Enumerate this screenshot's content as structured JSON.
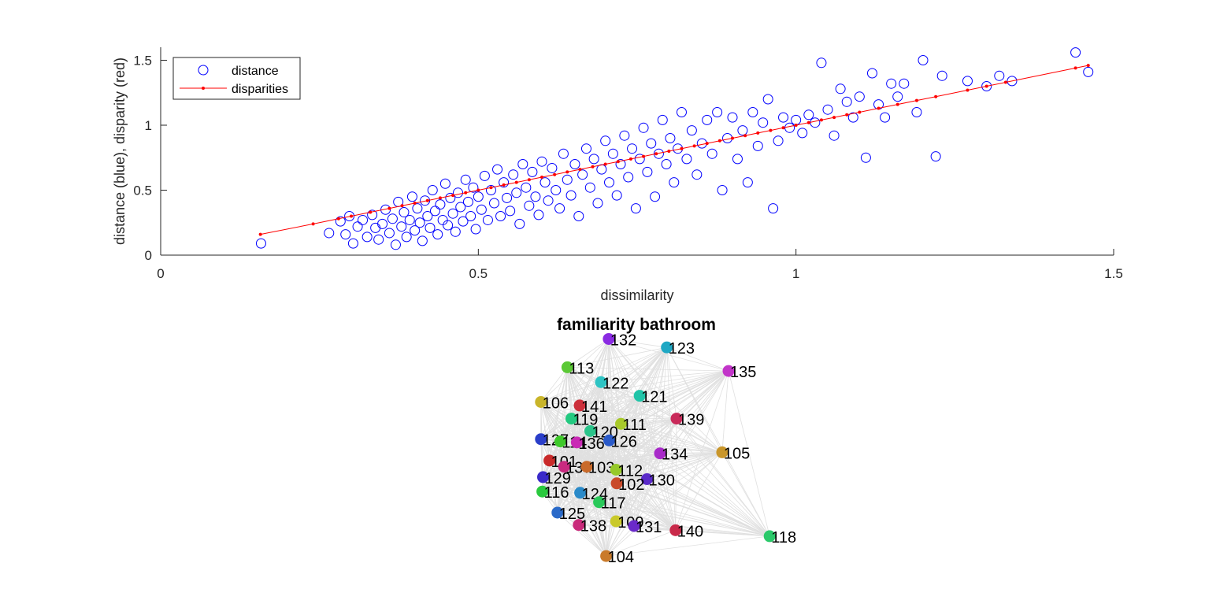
{
  "chart_data": [
    {
      "type": "scatter",
      "xlabel": "dissimilarity",
      "ylabel": "distance (blue), disparity (red)",
      "xlim": [
        0,
        1.5
      ],
      "ylim": [
        0,
        1.6
      ],
      "xticks": [
        "0",
        "0.5",
        "1",
        "1.5"
      ],
      "yticks": [
        "0",
        "0.5",
        "1",
        "1.5"
      ],
      "grid": false,
      "legend_position": "top-left",
      "colors": {
        "distance": "#0000ff",
        "disparities": "#ff0000"
      },
      "series": [
        {
          "name": "distance",
          "marker": "open-circle",
          "note": "approximately 600 points in the original; representative sample listed",
          "points": [
            [
              0.158,
              0.09
            ],
            [
              0.265,
              0.17
            ],
            [
              0.283,
              0.26
            ],
            [
              0.291,
              0.16
            ],
            [
              0.297,
              0.3
            ],
            [
              0.303,
              0.09
            ],
            [
              0.31,
              0.22
            ],
            [
              0.318,
              0.27
            ],
            [
              0.325,
              0.14
            ],
            [
              0.333,
              0.31
            ],
            [
              0.338,
              0.21
            ],
            [
              0.343,
              0.12
            ],
            [
              0.349,
              0.24
            ],
            [
              0.354,
              0.35
            ],
            [
              0.36,
              0.17
            ],
            [
              0.365,
              0.28
            ],
            [
              0.37,
              0.08
            ],
            [
              0.374,
              0.41
            ],
            [
              0.379,
              0.22
            ],
            [
              0.383,
              0.33
            ],
            [
              0.387,
              0.14
            ],
            [
              0.392,
              0.27
            ],
            [
              0.396,
              0.45
            ],
            [
              0.4,
              0.19
            ],
            [
              0.404,
              0.36
            ],
            [
              0.408,
              0.25
            ],
            [
              0.412,
              0.11
            ],
            [
              0.416,
              0.42
            ],
            [
              0.42,
              0.3
            ],
            [
              0.424,
              0.21
            ],
            [
              0.428,
              0.5
            ],
            [
              0.432,
              0.34
            ],
            [
              0.436,
              0.16
            ],
            [
              0.44,
              0.39
            ],
            [
              0.444,
              0.27
            ],
            [
              0.448,
              0.55
            ],
            [
              0.452,
              0.23
            ],
            [
              0.456,
              0.44
            ],
            [
              0.46,
              0.32
            ],
            [
              0.464,
              0.18
            ],
            [
              0.468,
              0.48
            ],
            [
              0.472,
              0.37
            ],
            [
              0.476,
              0.26
            ],
            [
              0.48,
              0.58
            ],
            [
              0.484,
              0.41
            ],
            [
              0.488,
              0.3
            ],
            [
              0.492,
              0.52
            ],
            [
              0.496,
              0.2
            ],
            [
              0.5,
              0.45
            ],
            [
              0.505,
              0.35
            ],
            [
              0.51,
              0.61
            ],
            [
              0.515,
              0.27
            ],
            [
              0.52,
              0.5
            ],
            [
              0.525,
              0.4
            ],
            [
              0.53,
              0.66
            ],
            [
              0.535,
              0.3
            ],
            [
              0.54,
              0.56
            ],
            [
              0.545,
              0.44
            ],
            [
              0.55,
              0.34
            ],
            [
              0.555,
              0.62
            ],
            [
              0.56,
              0.48
            ],
            [
              0.565,
              0.24
            ],
            [
              0.57,
              0.7
            ],
            [
              0.575,
              0.52
            ],
            [
              0.58,
              0.38
            ],
            [
              0.585,
              0.64
            ],
            [
              0.59,
              0.45
            ],
            [
              0.595,
              0.31
            ],
            [
              0.6,
              0.72
            ],
            [
              0.605,
              0.56
            ],
            [
              0.61,
              0.42
            ],
            [
              0.616,
              0.67
            ],
            [
              0.622,
              0.5
            ],
            [
              0.628,
              0.36
            ],
            [
              0.634,
              0.78
            ],
            [
              0.64,
              0.58
            ],
            [
              0.646,
              0.46
            ],
            [
              0.652,
              0.7
            ],
            [
              0.658,
              0.3
            ],
            [
              0.664,
              0.62
            ],
            [
              0.67,
              0.82
            ],
            [
              0.676,
              0.52
            ],
            [
              0.682,
              0.74
            ],
            [
              0.688,
              0.4
            ],
            [
              0.694,
              0.66
            ],
            [
              0.7,
              0.88
            ],
            [
              0.706,
              0.56
            ],
            [
              0.712,
              0.78
            ],
            [
              0.718,
              0.46
            ],
            [
              0.724,
              0.7
            ],
            [
              0.73,
              0.92
            ],
            [
              0.736,
              0.6
            ],
            [
              0.742,
              0.82
            ],
            [
              0.748,
              0.36
            ],
            [
              0.754,
              0.74
            ],
            [
              0.76,
              0.98
            ],
            [
              0.766,
              0.64
            ],
            [
              0.772,
              0.86
            ],
            [
              0.778,
              0.45
            ],
            [
              0.784,
              0.78
            ],
            [
              0.79,
              1.04
            ],
            [
              0.796,
              0.7
            ],
            [
              0.802,
              0.9
            ],
            [
              0.808,
              0.56
            ],
            [
              0.814,
              0.82
            ],
            [
              0.82,
              1.1
            ],
            [
              0.828,
              0.74
            ],
            [
              0.836,
              0.96
            ],
            [
              0.844,
              0.62
            ],
            [
              0.852,
              0.86
            ],
            [
              0.86,
              1.04
            ],
            [
              0.868,
              0.78
            ],
            [
              0.876,
              1.1
            ],
            [
              0.884,
              0.5
            ],
            [
              0.892,
              0.9
            ],
            [
              0.9,
              1.06
            ],
            [
              0.908,
              0.74
            ],
            [
              0.916,
              0.96
            ],
            [
              0.924,
              0.56
            ],
            [
              0.932,
              1.1
            ],
            [
              0.94,
              0.84
            ],
            [
              0.948,
              1.02
            ],
            [
              0.956,
              1.2
            ],
            [
              0.964,
              0.36
            ],
            [
              0.972,
              0.88
            ],
            [
              0.98,
              1.06
            ],
            [
              0.99,
              0.98
            ],
            [
              1.0,
              1.04
            ],
            [
              1.01,
              0.94
            ],
            [
              1.02,
              1.08
            ],
            [
              1.03,
              1.02
            ],
            [
              1.04,
              1.48
            ],
            [
              1.05,
              1.12
            ],
            [
              1.06,
              0.92
            ],
            [
              1.07,
              1.28
            ],
            [
              1.08,
              1.18
            ],
            [
              1.09,
              1.06
            ],
            [
              1.1,
              1.22
            ],
            [
              1.11,
              0.75
            ],
            [
              1.12,
              1.4
            ],
            [
              1.13,
              1.16
            ],
            [
              1.14,
              1.06
            ],
            [
              1.15,
              1.32
            ],
            [
              1.16,
              1.22
            ],
            [
              1.17,
              1.32
            ],
            [
              1.19,
              1.1
            ],
            [
              1.2,
              1.5
            ],
            [
              1.22,
              0.76
            ],
            [
              1.23,
              1.38
            ],
            [
              1.27,
              1.34
            ],
            [
              1.3,
              1.3
            ],
            [
              1.32,
              1.38
            ],
            [
              1.34,
              1.34
            ],
            [
              1.44,
              1.56
            ],
            [
              1.46,
              1.41
            ]
          ]
        },
        {
          "name": "disparities",
          "marker": "line-with-dots",
          "points": [
            [
              0.157,
              0.16
            ],
            [
              0.24,
              0.24
            ],
            [
              0.28,
              0.28
            ],
            [
              0.3,
              0.3
            ],
            [
              0.33,
              0.33
            ],
            [
              0.36,
              0.36
            ],
            [
              0.38,
              0.38
            ],
            [
              0.4,
              0.4
            ],
            [
              0.42,
              0.42
            ],
            [
              0.44,
              0.44
            ],
            [
              0.46,
              0.46
            ],
            [
              0.48,
              0.48
            ],
            [
              0.5,
              0.5
            ],
            [
              0.52,
              0.52
            ],
            [
              0.54,
              0.54
            ],
            [
              0.56,
              0.56
            ],
            [
              0.58,
              0.58
            ],
            [
              0.6,
              0.6
            ],
            [
              0.62,
              0.62
            ],
            [
              0.64,
              0.64
            ],
            [
              0.66,
              0.66
            ],
            [
              0.68,
              0.68
            ],
            [
              0.7,
              0.7
            ],
            [
              0.72,
              0.72
            ],
            [
              0.74,
              0.74
            ],
            [
              0.76,
              0.76
            ],
            [
              0.78,
              0.78
            ],
            [
              0.8,
              0.8
            ],
            [
              0.82,
              0.82
            ],
            [
              0.84,
              0.84
            ],
            [
              0.86,
              0.86
            ],
            [
              0.88,
              0.88
            ],
            [
              0.9,
              0.9
            ],
            [
              0.92,
              0.92
            ],
            [
              0.94,
              0.94
            ],
            [
              0.96,
              0.96
            ],
            [
              0.98,
              0.98
            ],
            [
              1.0,
              1.0
            ],
            [
              1.02,
              1.02
            ],
            [
              1.04,
              1.04
            ],
            [
              1.06,
              1.06
            ],
            [
              1.08,
              1.08
            ],
            [
              1.1,
              1.1
            ],
            [
              1.13,
              1.13
            ],
            [
              1.16,
              1.16
            ],
            [
              1.19,
              1.19
            ],
            [
              1.22,
              1.22
            ],
            [
              1.27,
              1.27
            ],
            [
              1.3,
              1.3
            ],
            [
              1.33,
              1.33
            ],
            [
              1.44,
              1.44
            ],
            [
              1.46,
              1.46
            ]
          ]
        }
      ]
    },
    {
      "type": "network",
      "title": "familiarity bathroom",
      "edge_color": "#e0e0e0",
      "nodes": [
        {
          "label": "132",
          "x": 0.093,
          "y": 0.935,
          "color": "#8a2be2"
        },
        {
          "label": "123",
          "x": 0.339,
          "y": 0.901,
          "color": "#1fa8c4"
        },
        {
          "label": "113",
          "x": -0.082,
          "y": 0.821,
          "color": "#5bc936"
        },
        {
          "label": "135",
          "x": 0.6,
          "y": 0.806,
          "color": "#c235c9"
        },
        {
          "label": "122",
          "x": 0.06,
          "y": 0.761,
          "color": "#2ec4c4"
        },
        {
          "label": "121",
          "x": 0.224,
          "y": 0.706,
          "color": "#20c4a8"
        },
        {
          "label": "106",
          "x": -0.194,
          "y": 0.681,
          "color": "#c9b52a"
        },
        {
          "label": "141",
          "x": -0.03,
          "y": 0.667,
          "color": "#cc2f3a"
        },
        {
          "label": "119",
          "x": -0.065,
          "y": 0.614,
          "color": "#23c980"
        },
        {
          "label": "139",
          "x": 0.38,
          "y": 0.614,
          "color": "#c92a5a"
        },
        {
          "label": "111",
          "x": 0.145,
          "y": 0.593,
          "color": "#a8c92a"
        },
        {
          "label": "120",
          "x": 0.015,
          "y": 0.564,
          "color": "#2ac48a"
        },
        {
          "label": "127",
          "x": -0.194,
          "y": 0.531,
          "color": "#2a3ec9"
        },
        {
          "label": "114",
          "x": -0.112,
          "y": 0.522,
          "color": "#3ec92a"
        },
        {
          "label": "136",
          "x": -0.042,
          "y": 0.518,
          "color": "#c92ab5"
        },
        {
          "label": "126",
          "x": 0.095,
          "y": 0.526,
          "color": "#2a5ac9"
        },
        {
          "label": "134",
          "x": 0.31,
          "y": 0.474,
          "color": "#a82ac9"
        },
        {
          "label": "105",
          "x": 0.573,
          "y": 0.478,
          "color": "#c9962a"
        },
        {
          "label": "101",
          "x": -0.158,
          "y": 0.445,
          "color": "#c92a2a"
        },
        {
          "label": "137",
          "x": -0.096,
          "y": 0.42,
          "color": "#c92a80"
        },
        {
          "label": "103",
          "x": 0.0,
          "y": 0.42,
          "color": "#c96a2a"
        },
        {
          "label": "112",
          "x": 0.124,
          "y": 0.408,
          "color": "#96c92a"
        },
        {
          "label": "129",
          "x": -0.185,
          "y": 0.378,
          "color": "#3a2ac9"
        },
        {
          "label": "130",
          "x": 0.255,
          "y": 0.37,
          "color": "#5a2ac9"
        },
        {
          "label": "102",
          "x": 0.127,
          "y": 0.353,
          "color": "#c94a2a"
        },
        {
          "label": "116",
          "x": -0.188,
          "y": 0.32,
          "color": "#2ac93e"
        },
        {
          "label": "124",
          "x": -0.028,
          "y": 0.315,
          "color": "#2a8ac9"
        },
        {
          "label": "117",
          "x": 0.052,
          "y": 0.277,
          "color": "#2ac95a"
        },
        {
          "label": "125",
          "x": -0.124,
          "y": 0.235,
          "color": "#2a6ac9"
        },
        {
          "label": "109",
          "x": 0.124,
          "y": 0.2,
          "color": "#c9c92a"
        },
        {
          "label": "138",
          "x": -0.034,
          "y": 0.185,
          "color": "#c92a7a"
        },
        {
          "label": "131",
          "x": 0.2,
          "y": 0.181,
          "color": "#6a2ac9"
        },
        {
          "label": "140",
          "x": 0.376,
          "y": 0.164,
          "color": "#c92a4a"
        },
        {
          "label": "118",
          "x": 0.774,
          "y": 0.14,
          "color": "#2ac96a"
        },
        {
          "label": "104",
          "x": 0.082,
          "y": 0.06,
          "color": "#c97a2a"
        }
      ]
    }
  ]
}
